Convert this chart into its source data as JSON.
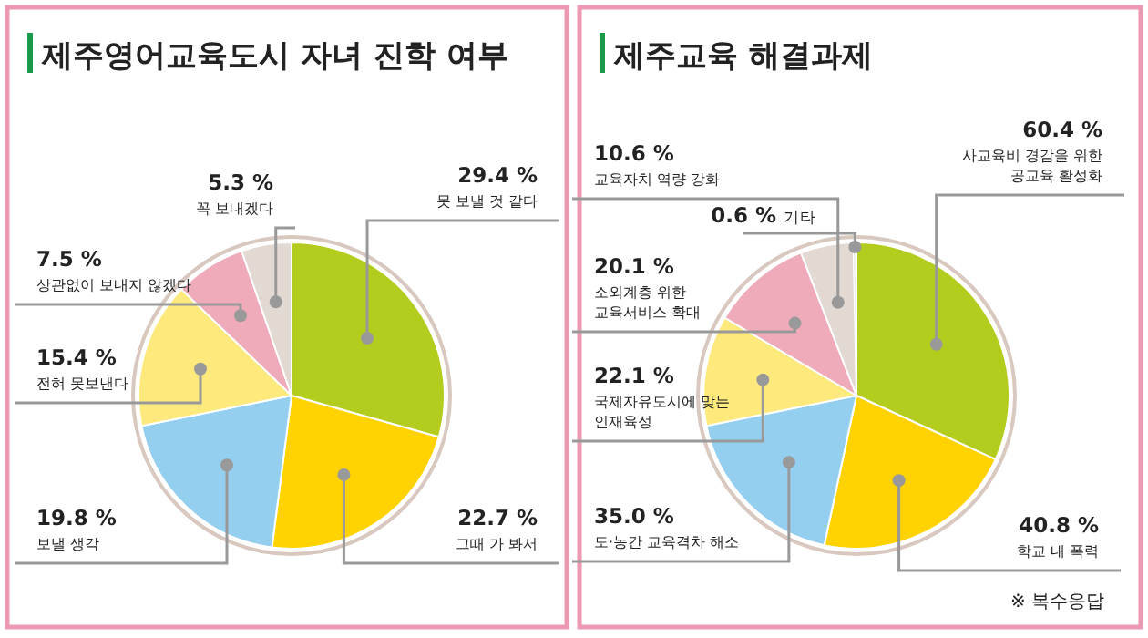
{
  "chart_data": [
    {
      "type": "pie",
      "title": "제주영어교육도시 자녀 진학 여부",
      "categories": [
        "못 보낼 것 같다",
        "그때 가 봐서",
        "보낼 생각",
        "전혀 못보낸다",
        "상관없이 보내지 않겠다",
        "꼭 보내겠다"
      ],
      "values": [
        29.4,
        22.7,
        19.8,
        15.4,
        7.5,
        5.3
      ],
      "value_labels": [
        "29.4 %",
        "22.7 %",
        "19.8 %",
        "15.4 %",
        "7.5 %",
        "5.3 %"
      ],
      "colors": [
        "#b3cc1e",
        "#ffd200",
        "#95cff0",
        "#fde97c",
        "#efabb9",
        "#e3d9d3"
      ]
    },
    {
      "type": "pie",
      "title": "제주교육 해결과제",
      "categories": [
        "사교육비 경감을 위한 공교육 활성화",
        "학교 내 폭력",
        "도·농간 교육격차 해소",
        "국제자유도시에 맞는 인재육성",
        "소외계층 위한 교육서비스 확대",
        "교육자치 역량 강화",
        "기타"
      ],
      "values": [
        60.4,
        40.8,
        35.0,
        22.1,
        20.1,
        10.6,
        0.6
      ],
      "value_labels": [
        "60.4 %",
        "40.8 %",
        "35.0 %",
        "22.1 %",
        "20.1 %",
        "10.6 %",
        "0.6 %"
      ],
      "colors": [
        "#b3cc1e",
        "#ffd200",
        "#95cff0",
        "#fde97c",
        "#efabb9",
        "#e3d9d3",
        "#eeeeee"
      ],
      "annotations": [
        "※ 복수응답"
      ]
    }
  ]
}
